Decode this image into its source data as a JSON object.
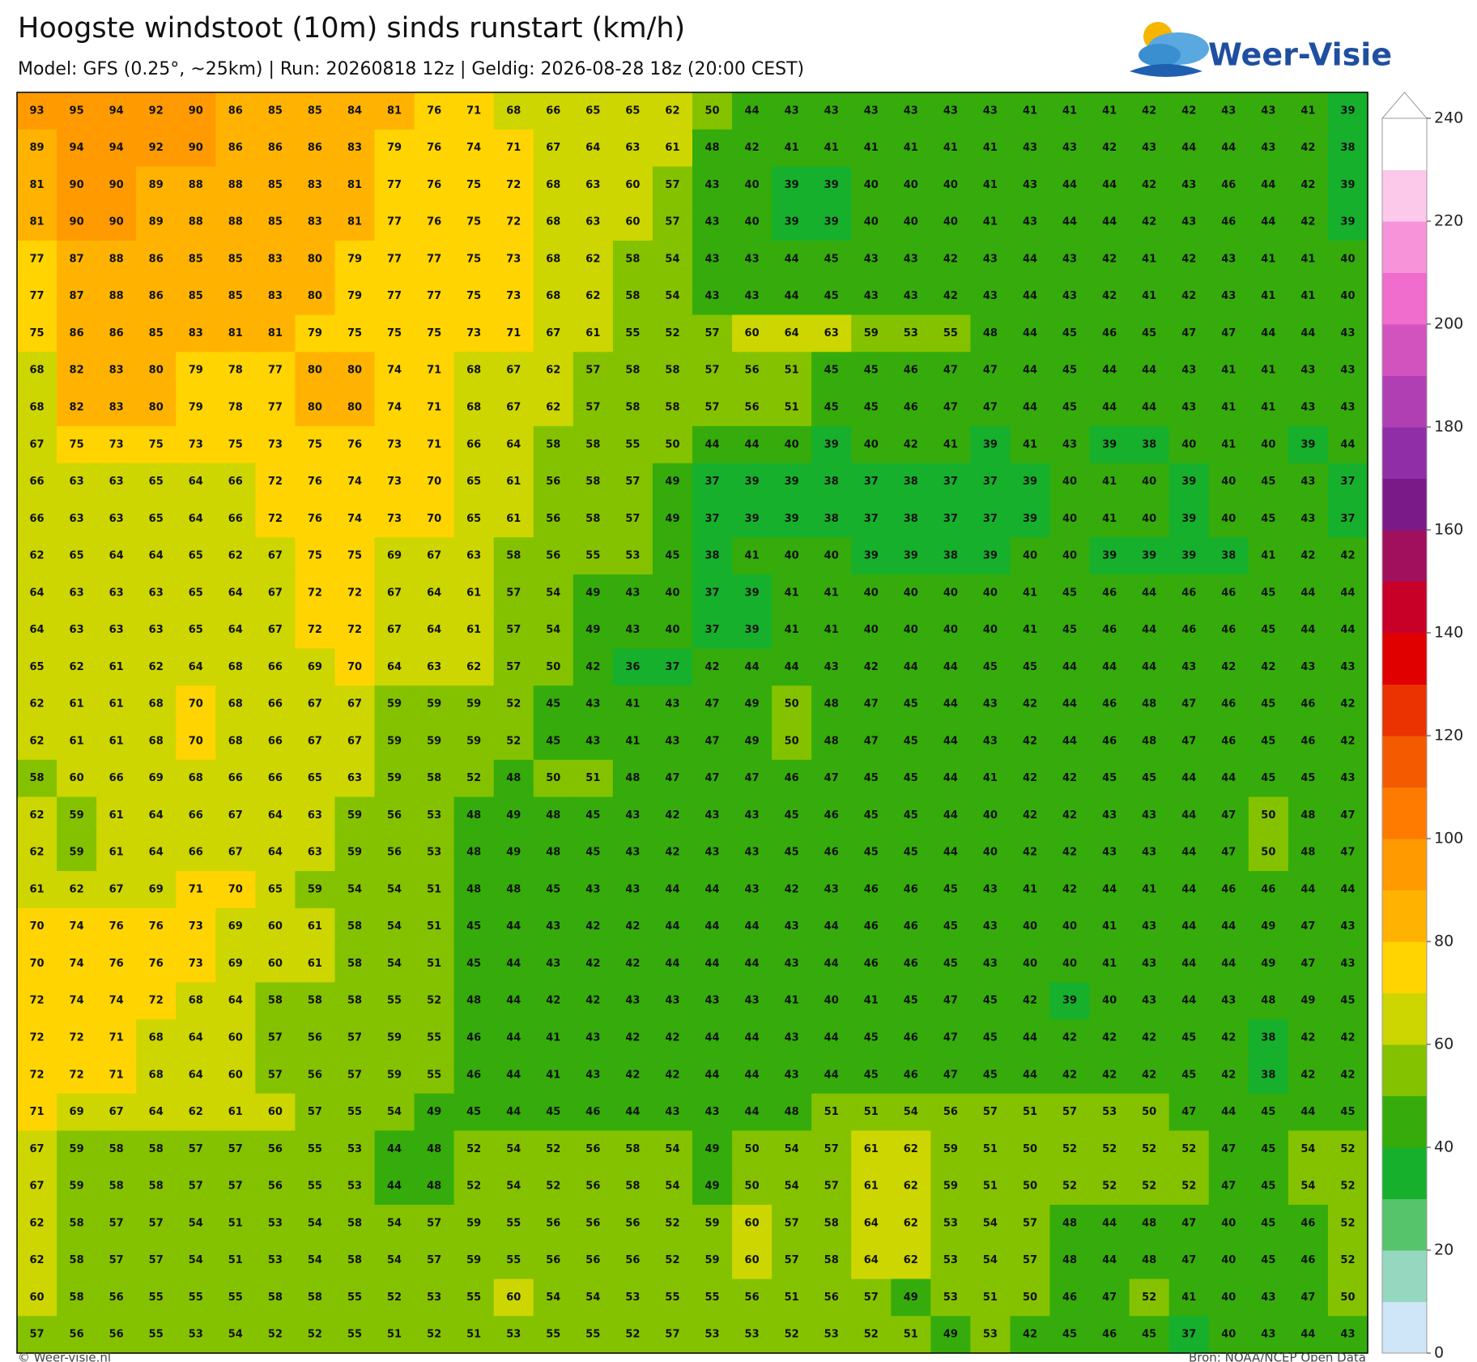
{
  "chart_data": {
    "type": "heatmap",
    "title": "Hoogste windstoot (10m) sinds runstart (km/h)",
    "subtitle": "Model: GFS (0.25°, ~25km)  |  Run: 20260818 12z  |  Geldig: 2026-08-28 18z (20:00 CEST)",
    "logo": "Weer-Visie",
    "credit": "© Weer-visie.nl",
    "source": "Bron: NOAA/NCEP Open Data",
    "values": [
      [
        93,
        95,
        94,
        92,
        90,
        86,
        85,
        85,
        84,
        81,
        76,
        71,
        68,
        66,
        65,
        65,
        62,
        50,
        44,
        43,
        43,
        43,
        43,
        43,
        43,
        41,
        41,
        41,
        42,
        42,
        43,
        43,
        41,
        39
      ],
      [
        89,
        94,
        94,
        92,
        90,
        86,
        86,
        86,
        83,
        79,
        76,
        74,
        71,
        67,
        64,
        63,
        61,
        48,
        42,
        41,
        41,
        41,
        41,
        41,
        41,
        43,
        43,
        42,
        43,
        44,
        44,
        43,
        42,
        38
      ],
      [
        81,
        90,
        90,
        89,
        88,
        88,
        85,
        83,
        81,
        77,
        76,
        75,
        72,
        68,
        63,
        60,
        57,
        43,
        40,
        39,
        39,
        40,
        40,
        40,
        41,
        43,
        44,
        44,
        42,
        43,
        46,
        44,
        42,
        39
      ],
      [
        81,
        90,
        90,
        89,
        88,
        88,
        85,
        83,
        81,
        77,
        76,
        75,
        72,
        68,
        63,
        60,
        57,
        43,
        40,
        39,
        39,
        40,
        40,
        40,
        41,
        43,
        44,
        44,
        42,
        43,
        46,
        44,
        42,
        39
      ],
      [
        77,
        87,
        88,
        86,
        85,
        85,
        83,
        80,
        79,
        77,
        77,
        75,
        73,
        68,
        62,
        58,
        54,
        43,
        43,
        44,
        45,
        43,
        43,
        42,
        43,
        44,
        43,
        42,
        41,
        42,
        43,
        41,
        41,
        40
      ],
      [
        77,
        87,
        88,
        86,
        85,
        85,
        83,
        80,
        79,
        77,
        77,
        75,
        73,
        68,
        62,
        58,
        54,
        43,
        43,
        44,
        45,
        43,
        43,
        42,
        43,
        44,
        43,
        42,
        41,
        42,
        43,
        41,
        41,
        40
      ],
      [
        75,
        86,
        86,
        85,
        83,
        81,
        81,
        79,
        75,
        75,
        75,
        73,
        71,
        67,
        61,
        55,
        52,
        57,
        60,
        64,
        63,
        59,
        53,
        55,
        48,
        44,
        45,
        46,
        45,
        47,
        47,
        44,
        44,
        43
      ],
      [
        68,
        82,
        83,
        80,
        79,
        78,
        77,
        80,
        80,
        74,
        71,
        68,
        67,
        62,
        57,
        58,
        58,
        57,
        56,
        51,
        45,
        45,
        46,
        47,
        47,
        44,
        45,
        44,
        44,
        43,
        41,
        41,
        43,
        43
      ],
      [
        68,
        82,
        83,
        80,
        79,
        78,
        77,
        80,
        80,
        74,
        71,
        68,
        67,
        62,
        57,
        58,
        58,
        57,
        56,
        51,
        45,
        45,
        46,
        47,
        47,
        44,
        45,
        44,
        44,
        43,
        41,
        41,
        43,
        43
      ],
      [
        67,
        75,
        73,
        75,
        73,
        75,
        73,
        75,
        76,
        73,
        71,
        66,
        64,
        58,
        58,
        55,
        50,
        44,
        44,
        40,
        39,
        40,
        42,
        41,
        39,
        41,
        43,
        39,
        38,
        40,
        41,
        40,
        39,
        44
      ],
      [
        66,
        63,
        63,
        65,
        64,
        66,
        72,
        76,
        74,
        73,
        70,
        65,
        61,
        56,
        58,
        57,
        49,
        37,
        39,
        39,
        38,
        37,
        38,
        37,
        37,
        39,
        40,
        41,
        40,
        39,
        40,
        45,
        43,
        37
      ],
      [
        66,
        63,
        63,
        65,
        64,
        66,
        72,
        76,
        74,
        73,
        70,
        65,
        61,
        56,
        58,
        57,
        49,
        37,
        39,
        39,
        38,
        37,
        38,
        37,
        37,
        39,
        40,
        41,
        40,
        39,
        40,
        45,
        43,
        37
      ],
      [
        62,
        65,
        64,
        64,
        65,
        62,
        67,
        75,
        75,
        69,
        67,
        63,
        58,
        56,
        55,
        53,
        45,
        38,
        41,
        40,
        40,
        39,
        39,
        38,
        39,
        40,
        40,
        39,
        39,
        39,
        38,
        41,
        42,
        42
      ],
      [
        64,
        63,
        63,
        63,
        65,
        64,
        67,
        72,
        72,
        67,
        64,
        61,
        57,
        54,
        49,
        43,
        40,
        37,
        39,
        41,
        41,
        40,
        40,
        40,
        40,
        41,
        45,
        46,
        44,
        46,
        46,
        45,
        44,
        44
      ],
      [
        64,
        63,
        63,
        63,
        65,
        64,
        67,
        72,
        72,
        67,
        64,
        61,
        57,
        54,
        49,
        43,
        40,
        37,
        39,
        41,
        41,
        40,
        40,
        40,
        40,
        41,
        45,
        46,
        44,
        46,
        46,
        45,
        44,
        44
      ],
      [
        65,
        62,
        61,
        62,
        64,
        68,
        66,
        69,
        70,
        64,
        63,
        62,
        57,
        50,
        42,
        36,
        37,
        42,
        44,
        44,
        43,
        42,
        44,
        44,
        45,
        45,
        44,
        44,
        44,
        43,
        42,
        42,
        43,
        43
      ],
      [
        62,
        61,
        61,
        68,
        70,
        68,
        66,
        67,
        67,
        59,
        59,
        59,
        52,
        45,
        43,
        41,
        43,
        47,
        49,
        50,
        48,
        47,
        45,
        44,
        43,
        42,
        44,
        46,
        48,
        47,
        46,
        45,
        46,
        42
      ],
      [
        62,
        61,
        61,
        68,
        70,
        68,
        66,
        67,
        67,
        59,
        59,
        59,
        52,
        45,
        43,
        41,
        43,
        47,
        49,
        50,
        48,
        47,
        45,
        44,
        43,
        42,
        44,
        46,
        48,
        47,
        46,
        45,
        46,
        42
      ],
      [
        58,
        60,
        66,
        69,
        68,
        66,
        66,
        65,
        63,
        59,
        58,
        52,
        48,
        50,
        51,
        48,
        47,
        47,
        47,
        46,
        47,
        45,
        45,
        44,
        41,
        42,
        42,
        45,
        45,
        44,
        44,
        45,
        45,
        43
      ],
      [
        62,
        59,
        61,
        64,
        66,
        67,
        64,
        63,
        59,
        56,
        53,
        48,
        49,
        48,
        45,
        43,
        42,
        43,
        43,
        45,
        46,
        45,
        45,
        44,
        40,
        42,
        42,
        43,
        43,
        44,
        47,
        50,
        48,
        47
      ],
      [
        62,
        59,
        61,
        64,
        66,
        67,
        64,
        63,
        59,
        56,
        53,
        48,
        49,
        48,
        45,
        43,
        42,
        43,
        43,
        45,
        46,
        45,
        45,
        44,
        40,
        42,
        42,
        43,
        43,
        44,
        47,
        50,
        48,
        47
      ],
      [
        61,
        62,
        67,
        69,
        71,
        70,
        65,
        59,
        54,
        54,
        51,
        48,
        48,
        45,
        43,
        43,
        44,
        44,
        43,
        42,
        43,
        46,
        46,
        45,
        43,
        41,
        42,
        44,
        41,
        44,
        46,
        46,
        44,
        44
      ],
      [
        70,
        74,
        76,
        76,
        73,
        69,
        60,
        61,
        58,
        54,
        51,
        45,
        44,
        43,
        42,
        42,
        44,
        44,
        44,
        43,
        44,
        46,
        46,
        45,
        43,
        40,
        40,
        41,
        43,
        44,
        44,
        49,
        47,
        43
      ],
      [
        70,
        74,
        76,
        76,
        73,
        69,
        60,
        61,
        58,
        54,
        51,
        45,
        44,
        43,
        42,
        42,
        44,
        44,
        44,
        43,
        44,
        46,
        46,
        45,
        43,
        40,
        40,
        41,
        43,
        44,
        44,
        49,
        47,
        43
      ],
      [
        72,
        74,
        74,
        72,
        68,
        64,
        58,
        58,
        58,
        55,
        52,
        48,
        44,
        42,
        42,
        43,
        43,
        43,
        43,
        41,
        40,
        41,
        45,
        47,
        45,
        42,
        39,
        40,
        43,
        44,
        43,
        48,
        49,
        45
      ],
      [
        72,
        72,
        71,
        68,
        64,
        60,
        57,
        56,
        57,
        59,
        55,
        46,
        44,
        41,
        43,
        42,
        42,
        44,
        44,
        43,
        44,
        45,
        46,
        47,
        45,
        44,
        42,
        42,
        42,
        45,
        42,
        38,
        42,
        42
      ],
      [
        72,
        72,
        71,
        68,
        64,
        60,
        57,
        56,
        57,
        59,
        55,
        46,
        44,
        41,
        43,
        42,
        42,
        44,
        44,
        43,
        44,
        45,
        46,
        47,
        45,
        44,
        42,
        42,
        42,
        45,
        42,
        38,
        42,
        42
      ],
      [
        71,
        69,
        67,
        64,
        62,
        61,
        60,
        57,
        55,
        54,
        49,
        45,
        44,
        45,
        46,
        44,
        43,
        43,
        44,
        48,
        51,
        51,
        54,
        56,
        57,
        51,
        57,
        53,
        50,
        47,
        44,
        45,
        44,
        45
      ],
      [
        67,
        59,
        58,
        58,
        57,
        57,
        56,
        55,
        53,
        44,
        48,
        52,
        54,
        52,
        56,
        58,
        54,
        49,
        50,
        54,
        57,
        61,
        62,
        59,
        51,
        50,
        52,
        52,
        52,
        52,
        47,
        45,
        54,
        52
      ],
      [
        67,
        59,
        58,
        58,
        57,
        57,
        56,
        55,
        53,
        44,
        48,
        52,
        54,
        52,
        56,
        58,
        54,
        49,
        50,
        54,
        57,
        61,
        62,
        59,
        51,
        50,
        52,
        52,
        52,
        52,
        47,
        45,
        54,
        52
      ],
      [
        62,
        58,
        57,
        57,
        54,
        51,
        53,
        54,
        58,
        54,
        57,
        59,
        55,
        56,
        56,
        56,
        52,
        59,
        60,
        57,
        58,
        64,
        62,
        53,
        54,
        57,
        48,
        44,
        48,
        47,
        40,
        45,
        46,
        52
      ],
      [
        62,
        58,
        57,
        57,
        54,
        51,
        53,
        54,
        58,
        54,
        57,
        59,
        55,
        56,
        56,
        56,
        52,
        59,
        60,
        57,
        58,
        64,
        62,
        53,
        54,
        57,
        48,
        44,
        48,
        47,
        40,
        45,
        46,
        52
      ],
      [
        60,
        58,
        56,
        55,
        55,
        55,
        58,
        58,
        55,
        52,
        53,
        55,
        60,
        54,
        54,
        53,
        55,
        55,
        56,
        51,
        56,
        57,
        49,
        53,
        51,
        50,
        46,
        47,
        52,
        41,
        40,
        43,
        47,
        50
      ],
      [
        57,
        56,
        56,
        55,
        53,
        54,
        52,
        52,
        55,
        51,
        52,
        51,
        53,
        55,
        55,
        52,
        57,
        53,
        53,
        52,
        53,
        52,
        51,
        49,
        53,
        42,
        45,
        46,
        45,
        37,
        40,
        43,
        44,
        43
      ]
    ],
    "clim": [
      0,
      240
    ],
    "cticks": [
      0,
      20,
      40,
      60,
      80,
      100,
      120,
      140,
      160,
      180,
      200,
      220,
      240
    ],
    "colors": [
      "#cfe6f8",
      "#95d8bf",
      "#55c46a",
      "#16b02c",
      "#35ac0b",
      "#84c200",
      "#cdd600",
      "#ffd400",
      "#ffb300",
      "#ff9a00",
      "#ff7b00",
      "#f45a00",
      "#ea3300",
      "#e00000",
      "#c80028",
      "#a0105c",
      "#7a1a88",
      "#8f2ea6",
      "#b03fb4",
      "#d252be",
      "#f06ccd",
      "#f793d9",
      "#fdc9eb",
      "#ffffff"
    ]
  }
}
